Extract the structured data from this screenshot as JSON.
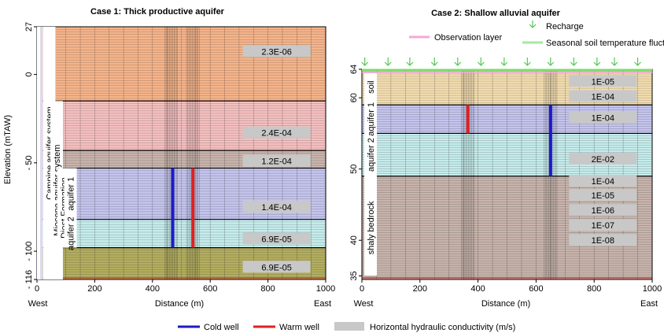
{
  "case1": {
    "title": "Case 1: Thick productive aquifer",
    "ylabel": "Elevation (mTAW)",
    "xlabel": "Distance (m)",
    "x_ticks": [
      "0",
      "200",
      "400",
      "600",
      "800",
      "1000"
    ],
    "x_tick_values": [
      0,
      200,
      400,
      600,
      800,
      1000
    ],
    "y_ticks": [
      "27",
      "0",
      "- 50",
      "- 100",
      "- 116"
    ],
    "y_tick_values": [
      27,
      0,
      -50,
      -100,
      -116
    ],
    "x_range": [
      0,
      1000
    ],
    "y_range": [
      -116,
      27
    ],
    "west_label": "West",
    "east_label": "East",
    "layers": [
      {
        "top": 27,
        "bottom": -15,
        "color": "#f6b48a",
        "k": "2.3E-06",
        "k_elev": 13
      },
      {
        "top": -15,
        "bottom": -43,
        "color": "#f6c0c0",
        "k": "2.4E-04",
        "k_elev": -33
      },
      {
        "top": -43,
        "bottom": -53,
        "color": "#c8b4ac",
        "k": "1.2E-04",
        "k_elev": -49
      },
      {
        "top": -53,
        "bottom": -82,
        "color": "#c4c4ee",
        "k": "1.4E-04",
        "k_elev": -75
      },
      {
        "top": -82,
        "bottom": -98,
        "color": "#c6ecec",
        "k": "6.9E-05",
        "k_elev": -93
      },
      {
        "top": -98,
        "bottom": -116,
        "color": "#b4ae5e",
        "k": "6.9E-05",
        "k_elev": -109
      }
    ],
    "formations": [
      {
        "label": "Campine aquifer system",
        "x": 42,
        "y_top": 27,
        "y_bottom": -116
      },
      {
        "label": "Miocene aquifer system",
        "x": 68,
        "y_top": -15,
        "y_bottom": -116
      },
      {
        "label": "Diest Formation",
        "x": 92,
        "y_top": -53,
        "y_bottom": -98
      },
      {
        "label": "aquifer 1",
        "x": 116,
        "y_top": -53,
        "y_bottom": -82
      },
      {
        "label": "aquifer 2",
        "x": 116,
        "y_top": -82,
        "y_bottom": -98
      }
    ],
    "cold_well": {
      "x": 470,
      "top": -53,
      "bottom": -98
    },
    "warm_well": {
      "x": 540,
      "top": -53,
      "bottom": -98
    }
  },
  "case2": {
    "title": "Case 2: Shallow alluvial aquifer",
    "xlabel": "Distance (m)",
    "x_ticks": [
      "0",
      "200",
      "400",
      "600",
      "800",
      "1000"
    ],
    "x_tick_values": [
      0,
      200,
      400,
      600,
      800,
      1000
    ],
    "y_ticks": [
      "64",
      "60",
      "50",
      "40",
      "35"
    ],
    "y_tick_values": [
      64,
      60,
      50,
      40,
      35
    ],
    "x_range": [
      0,
      1000
    ],
    "y_range": [
      34.5,
      64
    ],
    "west_label": "West",
    "east_label": "East",
    "legend": {
      "recharge": "Recharge",
      "observation": "Observation layer",
      "seasonal": "Seasonal soil temperature fluctuations"
    },
    "observation_layer_elev": 63.9,
    "layers": [
      {
        "top": 64,
        "bottom": 59,
        "color": "#f4deb0",
        "k_labels": [
          {
            "k": "1E-05",
            "elev": 62.3
          },
          {
            "k": "1E-04",
            "elev": 60.2
          }
        ]
      },
      {
        "top": 59,
        "bottom": 55,
        "color": "#c4c4ee",
        "k_labels": [
          {
            "k": "1E-04",
            "elev": 57.2
          }
        ]
      },
      {
        "top": 55,
        "bottom": 49,
        "color": "#c6ecec",
        "k_labels": [
          {
            "k": "2E-02",
            "elev": 51.4
          }
        ]
      },
      {
        "top": 49,
        "bottom": 34.5,
        "color": "#c8b4ac",
        "k_labels": [
          {
            "k": "1E-04",
            "elev": 48.3
          },
          {
            "k": "1E-05",
            "elev": 46.3
          },
          {
            "k": "1E-06",
            "elev": 44.2
          },
          {
            "k": "1E-07",
            "elev": 42.1
          },
          {
            "k": "1E-08",
            "elev": 40.0
          }
        ]
      }
    ],
    "unit_labels": [
      {
        "label": "soil",
        "y_top": 64,
        "y_bottom": 59
      },
      {
        "label": "aquifer 1",
        "y_top": 59,
        "y_bottom": 55
      },
      {
        "label": "aquifer 2",
        "y_top": 55,
        "y_bottom": 49
      },
      {
        "label": "shaly bedrock",
        "y_top": 49,
        "y_bottom": 34.5
      }
    ],
    "cold_well": {
      "x": 650,
      "top": 59,
      "bottom": 49
    },
    "warm_well": {
      "x": 365,
      "top": 59,
      "bottom": 55
    },
    "recharge_x": [
      10,
      90,
      165,
      250,
      330,
      410,
      490,
      570,
      650,
      730,
      810,
      870,
      950
    ]
  },
  "legend": {
    "cold_label": "Cold well",
    "warm_label": "Warm well",
    "k_label": "Horizontal hydraulic conductivity (m/s)",
    "cold_color": "#1a1acc",
    "warm_color": "#e02020",
    "k_color": "#c8c8c8"
  }
}
